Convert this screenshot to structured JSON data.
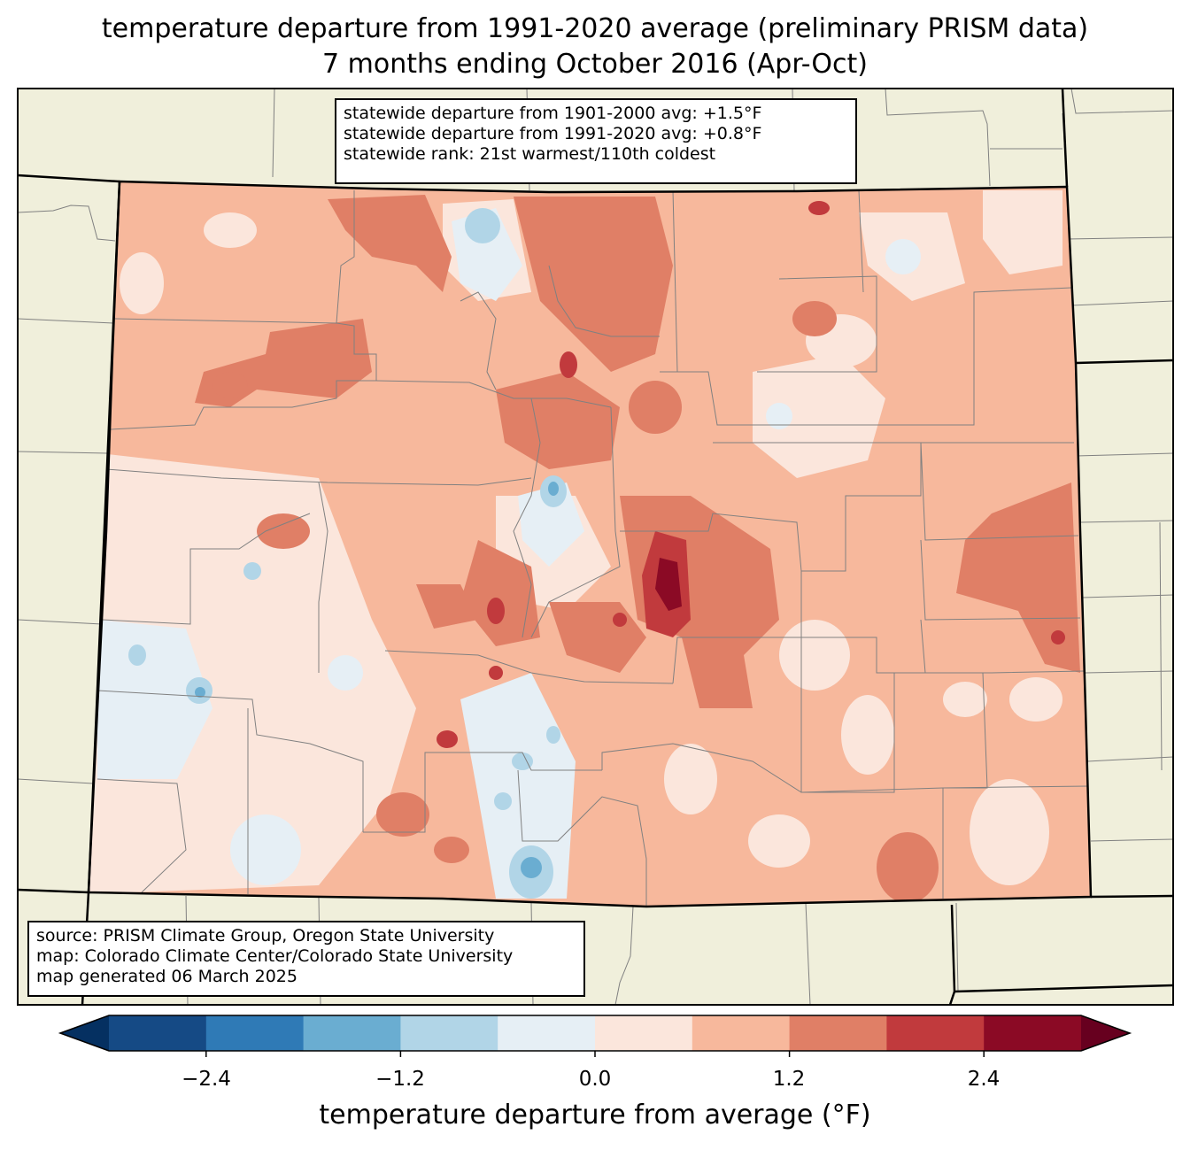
{
  "title": {
    "line1": "temperature departure from 1991-2020 average (preliminary PRISM data)",
    "line2": "7 months ending October 2016 (Apr-Oct)"
  },
  "stats": {
    "line1": "statewide departure from 1901-2000 avg: +1.5°F",
    "line2": "statewide departure from 1991-2020 avg: +0.8°F",
    "line3": "statewide rank: 21st warmest/110th coldest"
  },
  "source": {
    "line1": "source: PRISM Climate Group, Oregon State University",
    "line2": "map: Colorado Climate Center/Colorado State University",
    "line3": "map generated 06 March 2025"
  },
  "colorbar": {
    "label": "temperature departure from average (°F)",
    "tick_labels": [
      "−2.4",
      "−1.2",
      "0.0",
      "1.2",
      "2.4"
    ],
    "bins": [
      -3.0,
      -2.4,
      -1.8,
      -1.2,
      -0.6,
      0.0,
      0.6,
      1.2,
      1.8,
      2.4,
      3.0
    ],
    "colors": [
      "#053061",
      "#154a85",
      "#2f7ab6",
      "#6aadd1",
      "#b1d5e7",
      "#e6eff5",
      "#fbe6dc",
      "#f7b89c",
      "#e07f66",
      "#c13a3d",
      "#8b0a25",
      "#67001f"
    ]
  },
  "map_colors": {
    "land": "#f0efdb",
    "state_border": "#000000",
    "county_border": "#808080"
  }
}
